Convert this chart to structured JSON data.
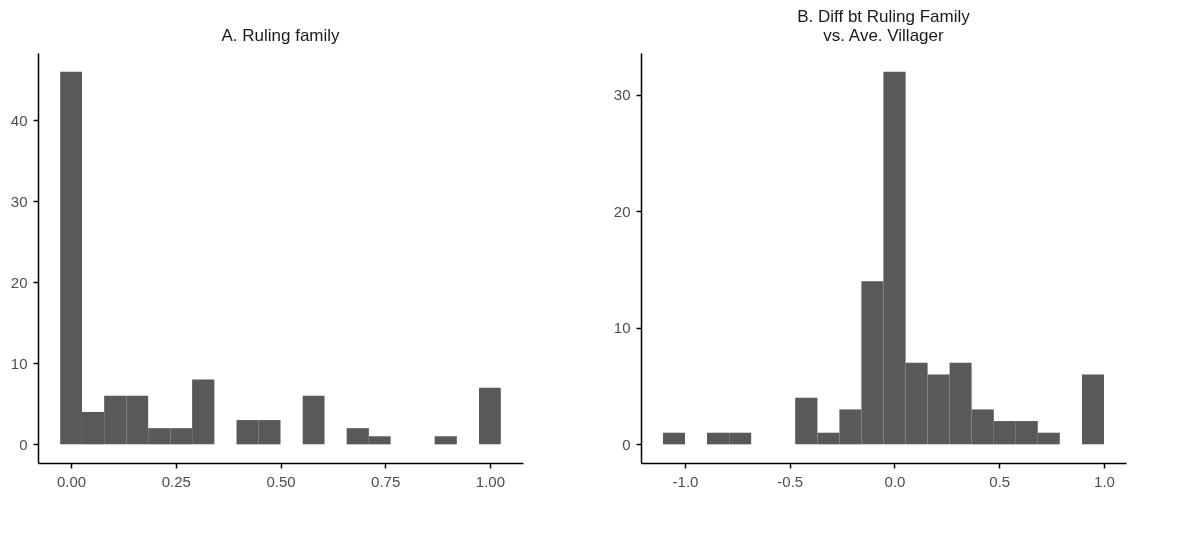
{
  "chart_data": [
    {
      "type": "histogram",
      "title": "A. Ruling family",
      "bins": [
        -0.026,
        0.026,
        0.079,
        0.132,
        0.184,
        0.237,
        0.289,
        0.342,
        0.395,
        0.447,
        0.5,
        0.553,
        0.605,
        0.658,
        0.711,
        0.763,
        0.816,
        0.868,
        0.921,
        0.974,
        1.026
      ],
      "values": [
        46,
        4,
        6,
        6,
        2,
        2,
        8,
        0,
        3,
        3,
        0,
        6,
        0,
        2,
        1,
        0,
        0,
        1,
        0,
        7
      ],
      "color": "#595959",
      "xlim": [
        -0.079,
        1.079
      ],
      "ylim": [
        -2.3,
        48.3
      ],
      "xticks": [
        {
          "value": 0,
          "label": "0.00"
        },
        {
          "value": 0.25,
          "label": "0.25"
        },
        {
          "value": 0.5,
          "label": "0.50"
        },
        {
          "value": 0.75,
          "label": "0.75"
        },
        {
          "value": 1,
          "label": "1.00"
        }
      ],
      "yticks": [
        0,
        10,
        20,
        30,
        40
      ],
      "grid": false
    },
    {
      "type": "histogram",
      "title": "B. Diff bt Ruling Family\nvs. Ave. Villager",
      "bins": [
        -1.105,
        -1.0,
        -0.895,
        -0.789,
        -0.684,
        -0.579,
        -0.474,
        -0.368,
        -0.263,
        -0.158,
        -0.053,
        0.053,
        0.158,
        0.263,
        0.368,
        0.474,
        0.579,
        0.684,
        0.789,
        0.895,
        1.0
      ],
      "values": [
        1,
        0,
        1,
        1,
        0,
        0,
        4,
        1,
        3,
        14,
        32,
        7,
        6,
        7,
        3,
        2,
        2,
        1,
        0,
        6
      ],
      "color": "#595959",
      "xlim": [
        -1.21,
        1.105
      ],
      "ylim": [
        -1.6,
        33.6
      ],
      "xticks": [
        {
          "value": -1,
          "label": "-1.0"
        },
        {
          "value": -0.5,
          "label": "-0.5"
        },
        {
          "value": 0,
          "label": "0.0"
        },
        {
          "value": 0.5,
          "label": "0.5"
        },
        {
          "value": 1,
          "label": "1.0"
        }
      ],
      "yticks": [
        0,
        10,
        20,
        30
      ],
      "grid": false
    }
  ]
}
